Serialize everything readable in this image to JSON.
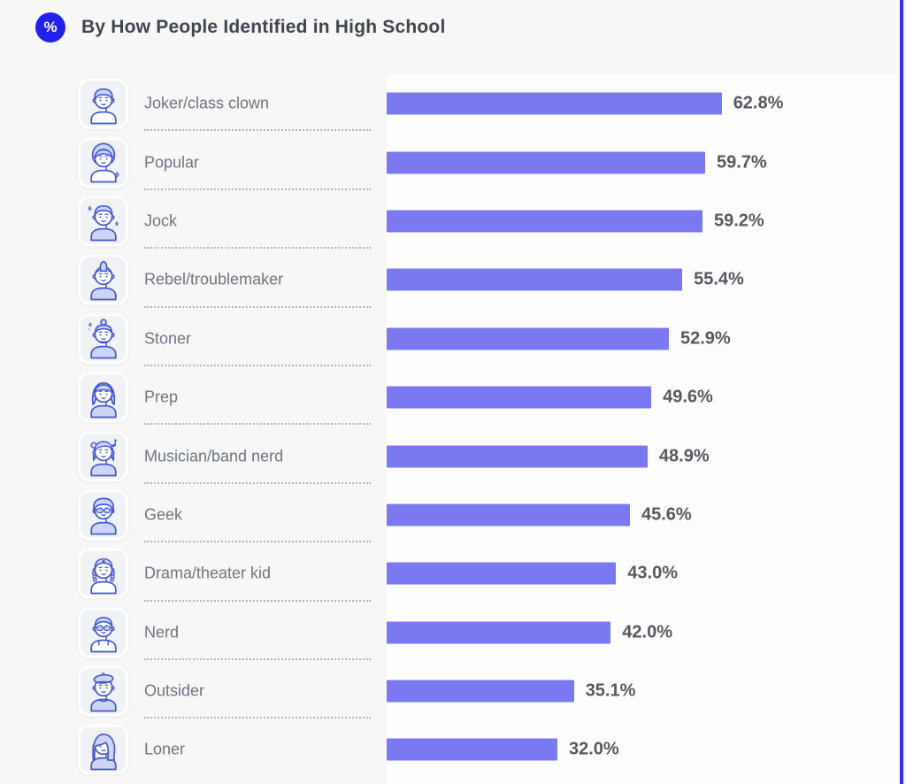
{
  "header": {
    "badge": "%",
    "title": "By How People Identified in High School"
  },
  "colors": {
    "badge_background": "#2420ec",
    "bar": "#7b79f1",
    "right_border": "#3a2fee"
  },
  "chart_data": {
    "type": "bar",
    "orientation": "horizontal",
    "title": "By How People Identified in High School",
    "unit": "percent",
    "categories": [
      "Joker/class clown",
      "Popular",
      "Jock",
      "Rebel/troublemaker",
      "Stoner",
      "Prep",
      "Musician/band nerd",
      "Geek",
      "Drama/theater kid",
      "Nerd",
      "Outsider",
      "Loner"
    ],
    "values": [
      62.8,
      59.7,
      59.2,
      55.4,
      52.9,
      49.6,
      48.9,
      45.6,
      43.0,
      42.0,
      35.1,
      32.0
    ],
    "value_labels": [
      "62.8%",
      "59.7%",
      "59.2%",
      "55.4%",
      "52.9%",
      "49.6%",
      "48.9%",
      "45.6%",
      "43.0%",
      "42.0%",
      "35.1%",
      "32.0%"
    ],
    "icons": [
      "joker-avatar-icon",
      "popular-avatar-icon",
      "jock-avatar-icon",
      "rebel-avatar-icon",
      "stoner-avatar-icon",
      "prep-avatar-icon",
      "musician-avatar-icon",
      "geek-avatar-icon",
      "drama-avatar-icon",
      "nerd-avatar-icon",
      "outsider-avatar-icon",
      "loner-avatar-icon"
    ],
    "xlim": [
      0,
      65
    ],
    "grid": false,
    "legend": false
  }
}
